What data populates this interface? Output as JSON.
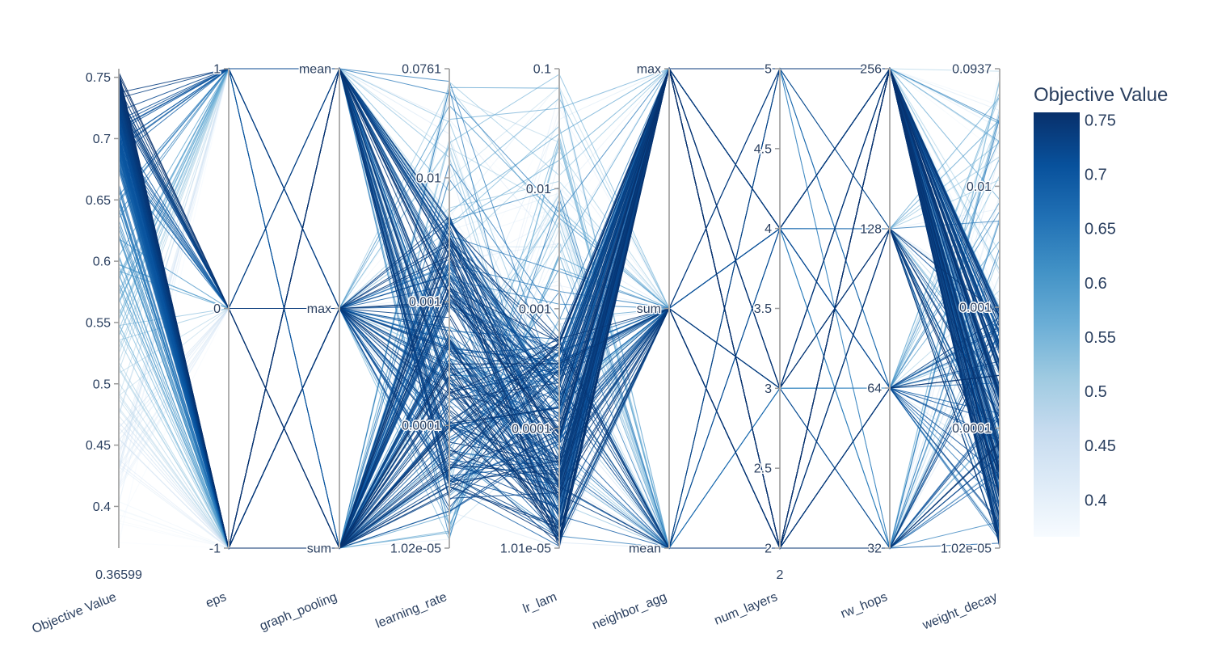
{
  "chart_data": {
    "type": "parallel_coordinates",
    "title": "",
    "axes": [
      {
        "name": "Objective Value",
        "ticks": [
          "0.75",
          "0.7",
          "0.65",
          "0.6",
          "0.55",
          "0.5",
          "0.45",
          "0.4"
        ],
        "range_labels": [
          "0.36599"
        ],
        "range": [
          0.36599,
          0.757
        ]
      },
      {
        "name": "eps",
        "ticks": [
          "1",
          "0",
          "-1"
        ],
        "range": [
          -1,
          1
        ]
      },
      {
        "name": "graph_pooling",
        "ticks": [
          "mean",
          "max",
          "sum"
        ]
      },
      {
        "name": "learning_rate",
        "ticks": [
          "0.0761",
          "0.01",
          "0.001",
          "0.0001",
          "1.02e-05"
        ],
        "scale": "log",
        "range": [
          1.02e-05,
          0.0761
        ]
      },
      {
        "name": "lr_lam",
        "ticks": [
          "0.1",
          "0.01",
          "0.001",
          "0.0001",
          "1.01e-05"
        ],
        "scale": "log",
        "range": [
          1.01e-05,
          0.1
        ]
      },
      {
        "name": "neighbor_agg",
        "ticks": [
          "max",
          "sum",
          "mean"
        ]
      },
      {
        "name": "num_layers",
        "ticks": [
          "5",
          "4.5",
          "4",
          "3.5",
          "3",
          "2.5",
          "2"
        ],
        "range_labels": [
          "2"
        ],
        "range": [
          2,
          5
        ]
      },
      {
        "name": "rw_hops",
        "ticks": [
          "256",
          "128",
          "64",
          "32"
        ]
      },
      {
        "name": "weight_decay",
        "ticks": [
          "0.0937",
          "0.01",
          "0.001",
          "0.0001",
          "1.02e-05"
        ],
        "scale": "log",
        "range": [
          1.02e-05,
          0.0937
        ]
      }
    ],
    "colorbar": {
      "title": "Objective Value",
      "ticks": [
        "0.75",
        "0.7",
        "0.65",
        "0.6",
        "0.55",
        "0.5",
        "0.45",
        "0.4"
      ],
      "range": [
        0.36599,
        0.757
      ],
      "colorscale": [
        "#f7fbff",
        "#deebf7",
        "#c6dbef",
        "#9ecae1",
        "#6baed6",
        "#4292c6",
        "#2171b5",
        "#08519c",
        "#08306b"
      ]
    },
    "trials_shown": 300,
    "grid": false
  }
}
